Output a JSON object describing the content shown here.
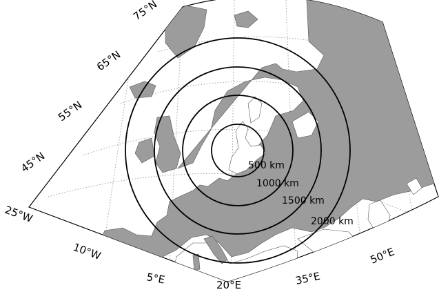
{
  "map": {
    "latitude_labels": [
      "75°N",
      "65°N",
      "55°N",
      "45°N"
    ],
    "longitude_labels": [
      "25°W",
      "10°W",
      "5°E",
      "20°E",
      "35°E",
      "50°E"
    ],
    "range_rings": [
      {
        "label": "500 km",
        "distance_km": 500
      },
      {
        "label": "1000 km",
        "distance_km": 1000
      },
      {
        "label": "1500 km",
        "distance_km": 1500
      },
      {
        "label": "2000 km",
        "distance_km": 2000
      }
    ],
    "colors": {
      "land": "#9c9c9c",
      "sea": "#ffffff",
      "rings": "#000000",
      "graticule": "#999999"
    }
  }
}
